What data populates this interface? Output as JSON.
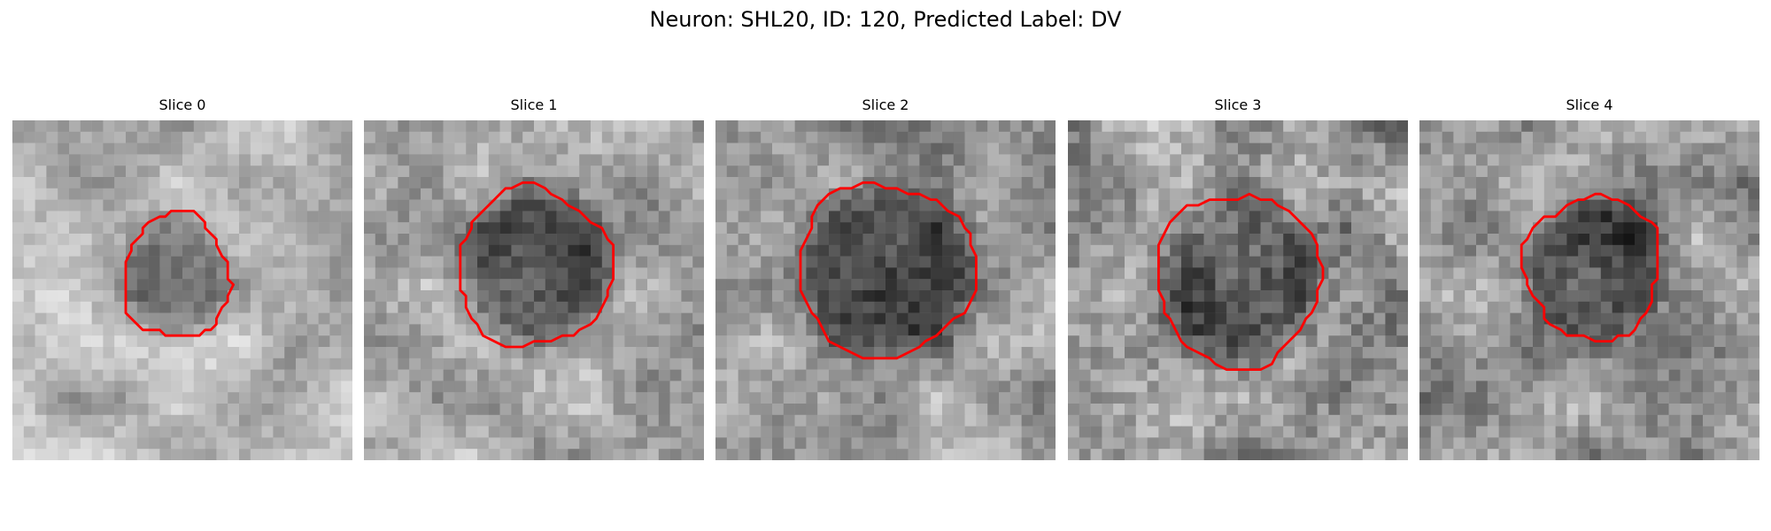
{
  "figure": {
    "title": "Neuron: SHL20, ID: 120, Predicted Label: DV"
  },
  "colors": {
    "contour": "#ff0000",
    "background": "#ffffff"
  },
  "panels": [
    {
      "title": "Slice 0",
      "tone": "light",
      "seed": 11
    },
    {
      "title": "Slice 1",
      "tone": "medium",
      "seed": 23
    },
    {
      "title": "Slice 2",
      "tone": "medium",
      "seed": 37
    },
    {
      "title": "Slice 3",
      "tone": "dark",
      "seed": 41
    },
    {
      "title": "Slice 4",
      "tone": "medium",
      "seed": 59
    }
  ]
}
